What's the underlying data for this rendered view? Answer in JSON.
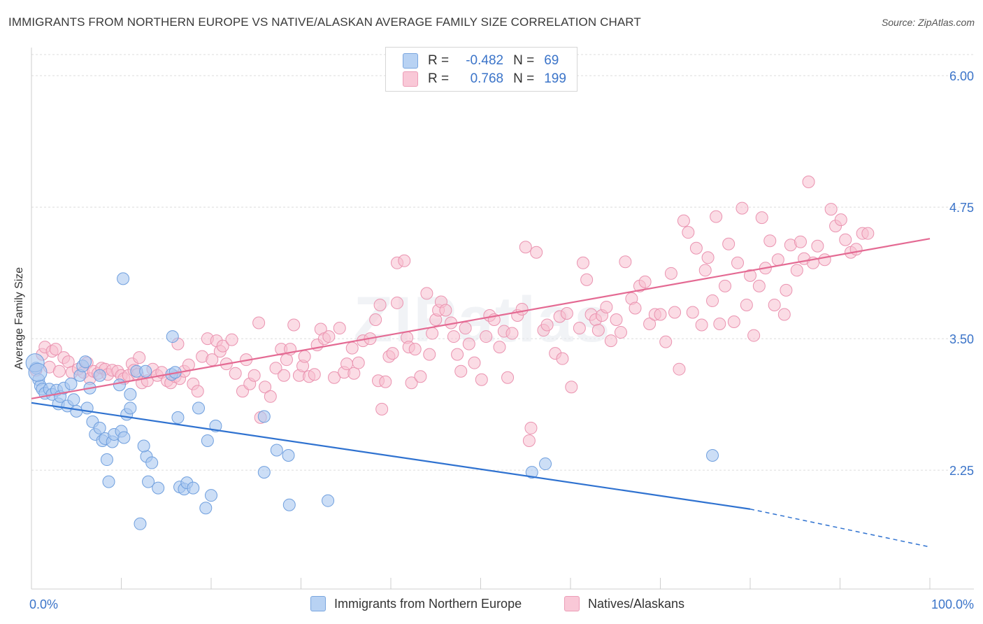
{
  "title": "IMMIGRANTS FROM NORTHERN EUROPE VS NATIVE/ALASKAN AVERAGE FAMILY SIZE CORRELATION CHART",
  "source": "Source: ZipAtlas.com",
  "watermark": "ZIPatlas",
  "legend": {
    "series": [
      {
        "r_label": "R =",
        "r_value": "-0.482",
        "n_label": "N =",
        "n_value": "69"
      },
      {
        "r_label": "R =",
        "r_value": "0.768",
        "n_label": "N =",
        "n_value": "199"
      }
    ]
  },
  "colors": {
    "blue_fill": "#aac8f0",
    "blue_stroke": "#6f9fde",
    "blue_line": "#2f72d0",
    "pink_fill": "#f7bfd0",
    "pink_stroke": "#ea93b0",
    "pink_line": "#e46a93",
    "tick_text": "#3b74c9",
    "grid": "#dcdcdc"
  },
  "chart_data": {
    "type": "scatter",
    "title": "IMMIGRANTS FROM NORTHERN EUROPE VS NATIVE/ALASKAN AVERAGE FAMILY SIZE CORRELATION CHART",
    "xlabel": "",
    "ylabel": "Average Family Size",
    "xlim": [
      0,
      100
    ],
    "ylim": [
      1.2,
      6.2
    ],
    "y_ticks": [
      2.25,
      3.5,
      4.75,
      6.0
    ],
    "y_tick_labels": [
      "2.25",
      "3.50",
      "4.75",
      "6.00"
    ],
    "x_tick_labels": [
      "0.0%",
      "100.0%"
    ],
    "grid": true,
    "series": [
      {
        "name": "Immigrants from Northern Europe",
        "color": "blue",
        "trend": {
          "x0": 0,
          "y0": 2.89,
          "x1": 80,
          "y1": 1.88,
          "dash_x1": 100,
          "dash_y1": 1.52
        },
        "points": [
          [
            0.5,
            3.22
          ],
          [
            0.8,
            3.11
          ],
          [
            1.0,
            3.05
          ],
          [
            1.2,
            3.02
          ],
          [
            1.5,
            2.98
          ],
          [
            2.0,
            3.02
          ],
          [
            2.3,
            2.97
          ],
          [
            2.8,
            3.01
          ],
          [
            3.0,
            2.88
          ],
          [
            3.2,
            2.95
          ],
          [
            3.6,
            3.03
          ],
          [
            4.0,
            2.86
          ],
          [
            4.4,
            3.07
          ],
          [
            4.7,
            2.92
          ],
          [
            5.0,
            2.81
          ],
          [
            5.4,
            3.15
          ],
          [
            5.7,
            3.24
          ],
          [
            6.0,
            3.28
          ],
          [
            6.2,
            2.84
          ],
          [
            6.5,
            3.03
          ],
          [
            6.8,
            2.71
          ],
          [
            7.1,
            2.59
          ],
          [
            7.6,
            3.15
          ],
          [
            7.6,
            2.65
          ],
          [
            7.9,
            2.53
          ],
          [
            8.2,
            2.55
          ],
          [
            8.4,
            2.35
          ],
          [
            8.6,
            2.14
          ],
          [
            9.0,
            2.52
          ],
          [
            9.2,
            2.59
          ],
          [
            9.8,
            3.06
          ],
          [
            10.0,
            2.62
          ],
          [
            10.3,
            2.56
          ],
          [
            10.2,
            4.07
          ],
          [
            10.6,
            2.78
          ],
          [
            11.0,
            2.97
          ],
          [
            11.0,
            2.84
          ],
          [
            12.1,
            1.74
          ],
          [
            11.7,
            3.19
          ],
          [
            12.7,
            3.19
          ],
          [
            12.8,
            2.38
          ],
          [
            12.5,
            2.48
          ],
          [
            13.0,
            2.14
          ],
          [
            13.4,
            2.32
          ],
          [
            14.1,
            2.08
          ],
          [
            15.6,
            3.16
          ],
          [
            15.7,
            3.52
          ],
          [
            16.0,
            3.18
          ],
          [
            16.3,
            2.75
          ],
          [
            16.5,
            2.09
          ],
          [
            17.0,
            2.07
          ],
          [
            17.3,
            2.13
          ],
          [
            18.0,
            2.08
          ],
          [
            18.6,
            2.84
          ],
          [
            19.4,
            1.89
          ],
          [
            19.6,
            2.53
          ],
          [
            20.0,
            2.01
          ],
          [
            20.5,
            2.67
          ],
          [
            25.9,
            2.76
          ],
          [
            25.9,
            2.23
          ],
          [
            27.3,
            2.44
          ],
          [
            28.6,
            2.39
          ],
          [
            28.7,
            1.92
          ],
          [
            33.0,
            1.96
          ],
          [
            55.7,
            2.23
          ],
          [
            57.2,
            2.31
          ],
          [
            75.8,
            2.39
          ],
          [
            0.4,
            3.27
          ],
          [
            0.7,
            3.18
          ]
        ]
      },
      {
        "name": "Natives/Alaskans",
        "color": "pink",
        "trend": {
          "x0": 0,
          "y0": 2.93,
          "x1": 100,
          "y1": 4.45
        },
        "points": [
          [
            0.5,
            3.2
          ],
          [
            1.2,
            3.35
          ],
          [
            1.5,
            3.42
          ],
          [
            2.0,
            3.23
          ],
          [
            2.3,
            3.38
          ],
          [
            2.7,
            3.4
          ],
          [
            3.1,
            3.19
          ],
          [
            3.6,
            3.32
          ],
          [
            4.1,
            3.28
          ],
          [
            4.5,
            3.18
          ],
          [
            5.2,
            3.21
          ],
          [
            5.8,
            3.18
          ],
          [
            6.2,
            3.27
          ],
          [
            6.5,
            3.12
          ],
          [
            6.9,
            3.19
          ],
          [
            7.4,
            3.17
          ],
          [
            7.8,
            3.22
          ],
          [
            8.2,
            3.21
          ],
          [
            8.5,
            3.16
          ],
          [
            9.0,
            3.2
          ],
          [
            9.6,
            3.19
          ],
          [
            10.0,
            3.15
          ],
          [
            10.3,
            3.12
          ],
          [
            10.8,
            3.15
          ],
          [
            11.2,
            3.26
          ],
          [
            11.4,
            3.2
          ],
          [
            11.8,
            3.16
          ],
          [
            12.0,
            3.32
          ],
          [
            12.3,
            3.08
          ],
          [
            12.9,
            3.1
          ],
          [
            13.5,
            3.21
          ],
          [
            14.0,
            3.15
          ],
          [
            14.5,
            3.18
          ],
          [
            15.1,
            3.1
          ],
          [
            15.5,
            3.08
          ],
          [
            16.0,
            3.14
          ],
          [
            16.3,
            3.45
          ],
          [
            16.5,
            3.12
          ],
          [
            17.0,
            3.19
          ],
          [
            17.5,
            3.25
          ],
          [
            18.0,
            3.07
          ],
          [
            18.5,
            3.0
          ],
          [
            19.0,
            3.33
          ],
          [
            19.6,
            3.5
          ],
          [
            20.1,
            3.3
          ],
          [
            20.6,
            3.48
          ],
          [
            21.0,
            3.38
          ],
          [
            21.3,
            3.43
          ],
          [
            21.7,
            3.26
          ],
          [
            22.3,
            3.49
          ],
          [
            22.7,
            3.17
          ],
          [
            23.5,
            3.0
          ],
          [
            23.9,
            3.3
          ],
          [
            24.3,
            3.07
          ],
          [
            24.8,
            3.15
          ],
          [
            25.3,
            3.65
          ],
          [
            25.5,
            2.75
          ],
          [
            26.0,
            3.04
          ],
          [
            26.6,
            2.95
          ],
          [
            27.2,
            3.22
          ],
          [
            27.8,
            3.4
          ],
          [
            28.1,
            3.15
          ],
          [
            28.4,
            3.3
          ],
          [
            28.8,
            3.4
          ],
          [
            29.2,
            3.63
          ],
          [
            29.8,
            3.15
          ],
          [
            30.2,
            3.24
          ],
          [
            30.4,
            3.33
          ],
          [
            30.9,
            3.14
          ],
          [
            31.5,
            3.16
          ],
          [
            31.8,
            3.44
          ],
          [
            32.2,
            3.59
          ],
          [
            32.6,
            3.5
          ],
          [
            33.1,
            3.52
          ],
          [
            33.7,
            3.13
          ],
          [
            34.3,
            3.6
          ],
          [
            34.8,
            3.18
          ],
          [
            35.1,
            3.26
          ],
          [
            35.7,
            3.41
          ],
          [
            35.9,
            3.17
          ],
          [
            36.4,
            3.27
          ],
          [
            36.9,
            3.48
          ],
          [
            37.7,
            3.5
          ],
          [
            38.3,
            3.68
          ],
          [
            38.6,
            3.1
          ],
          [
            38.8,
            3.82
          ],
          [
            39.0,
            2.83
          ],
          [
            39.4,
            3.09
          ],
          [
            39.8,
            3.33
          ],
          [
            40.2,
            3.36
          ],
          [
            40.7,
            3.84
          ],
          [
            40.7,
            4.22
          ],
          [
            41.5,
            4.24
          ],
          [
            41.8,
            3.51
          ],
          [
            42.0,
            3.42
          ],
          [
            42.3,
            3.08
          ],
          [
            42.7,
            3.4
          ],
          [
            43.3,
            3.14
          ],
          [
            44.0,
            3.93
          ],
          [
            44.3,
            3.35
          ],
          [
            44.6,
            3.55
          ],
          [
            45.0,
            3.68
          ],
          [
            45.3,
            3.77
          ],
          [
            45.6,
            3.85
          ],
          [
            46.1,
            3.77
          ],
          [
            46.7,
            3.65
          ],
          [
            47.0,
            3.52
          ],
          [
            47.4,
            3.35
          ],
          [
            47.8,
            3.19
          ],
          [
            48.3,
            3.6
          ],
          [
            48.7,
            3.45
          ],
          [
            49.3,
            3.27
          ],
          [
            50.1,
            3.11
          ],
          [
            50.6,
            3.52
          ],
          [
            51.0,
            3.72
          ],
          [
            51.5,
            3.68
          ],
          [
            52.1,
            3.42
          ],
          [
            52.6,
            3.57
          ],
          [
            53.0,
            3.13
          ],
          [
            53.5,
            3.55
          ],
          [
            54.1,
            3.72
          ],
          [
            54.6,
            3.78
          ],
          [
            55.0,
            4.37
          ],
          [
            55.4,
            2.53
          ],
          [
            55.6,
            2.65
          ],
          [
            56.2,
            4.32
          ],
          [
            57.0,
            3.58
          ],
          [
            57.4,
            3.63
          ],
          [
            58.3,
            3.36
          ],
          [
            58.8,
            3.71
          ],
          [
            59.1,
            3.31
          ],
          [
            59.6,
            3.74
          ],
          [
            60.1,
            3.04
          ],
          [
            61.0,
            3.6
          ],
          [
            61.4,
            4.22
          ],
          [
            61.8,
            4.06
          ],
          [
            62.3,
            3.73
          ],
          [
            62.8,
            3.68
          ],
          [
            63.1,
            3.58
          ],
          [
            63.5,
            3.72
          ],
          [
            64.0,
            3.8
          ],
          [
            64.5,
            3.48
          ],
          [
            65.1,
            3.68
          ],
          [
            65.6,
            3.56
          ],
          [
            66.1,
            4.23
          ],
          [
            66.8,
            3.88
          ],
          [
            67.2,
            3.79
          ],
          [
            67.7,
            4.0
          ],
          [
            68.3,
            4.04
          ],
          [
            68.8,
            3.64
          ],
          [
            69.4,
            3.73
          ],
          [
            70.0,
            3.73
          ],
          [
            70.6,
            3.47
          ],
          [
            71.2,
            4.12
          ],
          [
            71.6,
            3.75
          ],
          [
            72.1,
            3.21
          ],
          [
            72.6,
            4.62
          ],
          [
            73.1,
            4.51
          ],
          [
            73.6,
            3.75
          ],
          [
            74.0,
            4.36
          ],
          [
            74.6,
            3.63
          ],
          [
            75.0,
            4.15
          ],
          [
            75.3,
            4.27
          ],
          [
            75.8,
            3.86
          ],
          [
            76.2,
            4.66
          ],
          [
            76.6,
            3.64
          ],
          [
            77.2,
            4.0
          ],
          [
            77.6,
            4.4
          ],
          [
            78.2,
            3.66
          ],
          [
            78.6,
            4.22
          ],
          [
            79.1,
            4.74
          ],
          [
            79.6,
            3.82
          ],
          [
            80.0,
            4.1
          ],
          [
            80.4,
            3.53
          ],
          [
            81.0,
            4.0
          ],
          [
            81.3,
            4.65
          ],
          [
            81.7,
            4.17
          ],
          [
            82.2,
            4.43
          ],
          [
            82.7,
            3.82
          ],
          [
            83.1,
            4.25
          ],
          [
            83.8,
            3.73
          ],
          [
            84.0,
            3.96
          ],
          [
            84.5,
            4.39
          ],
          [
            85.2,
            4.15
          ],
          [
            85.6,
            4.42
          ],
          [
            86.0,
            4.26
          ],
          [
            86.5,
            4.99
          ],
          [
            87.0,
            4.22
          ],
          [
            87.5,
            4.38
          ],
          [
            88.3,
            4.25
          ],
          [
            89.0,
            4.73
          ],
          [
            89.5,
            4.57
          ],
          [
            90.1,
            4.63
          ],
          [
            90.6,
            4.44
          ],
          [
            91.2,
            4.32
          ],
          [
            91.8,
            4.35
          ],
          [
            92.5,
            4.5
          ],
          [
            93.1,
            4.5
          ]
        ]
      }
    ]
  },
  "bottom_legend": {
    "items": [
      "Immigrants from Northern Europe",
      "Natives/Alaskans"
    ]
  }
}
